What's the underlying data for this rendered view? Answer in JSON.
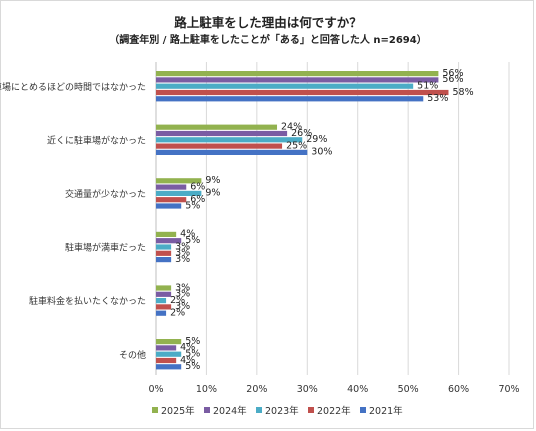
{
  "chart_data": {
    "type": "bar",
    "orientation": "horizontal",
    "title": "路上駐車をした理由は何ですか？",
    "subtitle": "（調査年別 / 路上駐車をしたことが「ある」と回答した人 n=2694）",
    "categories": [
      "駐車場にとめるほどの時間ではなかった",
      "近くに駐車場がなかった",
      "交通量が少なかった",
      "駐車場が満車だった",
      "駐車料金を払いたくなかった",
      "その他"
    ],
    "series": [
      {
        "name": "2025年",
        "color": "#92b24f",
        "values": [
          56,
          24,
          9,
          4,
          3,
          5
        ]
      },
      {
        "name": "2024年",
        "color": "#7a5ca3",
        "values": [
          56,
          26,
          6,
          5,
          3,
          4
        ]
      },
      {
        "name": "2023年",
        "color": "#4bacc6",
        "values": [
          51,
          29,
          9,
          3,
          2,
          5
        ]
      },
      {
        "name": "2022年",
        "color": "#c0504d",
        "values": [
          58,
          25,
          6,
          3,
          3,
          4
        ]
      },
      {
        "name": "2021年",
        "color": "#4472c4",
        "values": [
          53,
          30,
          5,
          3,
          2,
          5
        ]
      }
    ],
    "xlim": [
      0,
      70
    ],
    "xticks": [
      "0%",
      "10%",
      "20%",
      "30%",
      "40%",
      "50%",
      "60%",
      "70%"
    ],
    "value_suffix": "%",
    "grid": true,
    "legend_position": "bottom"
  }
}
